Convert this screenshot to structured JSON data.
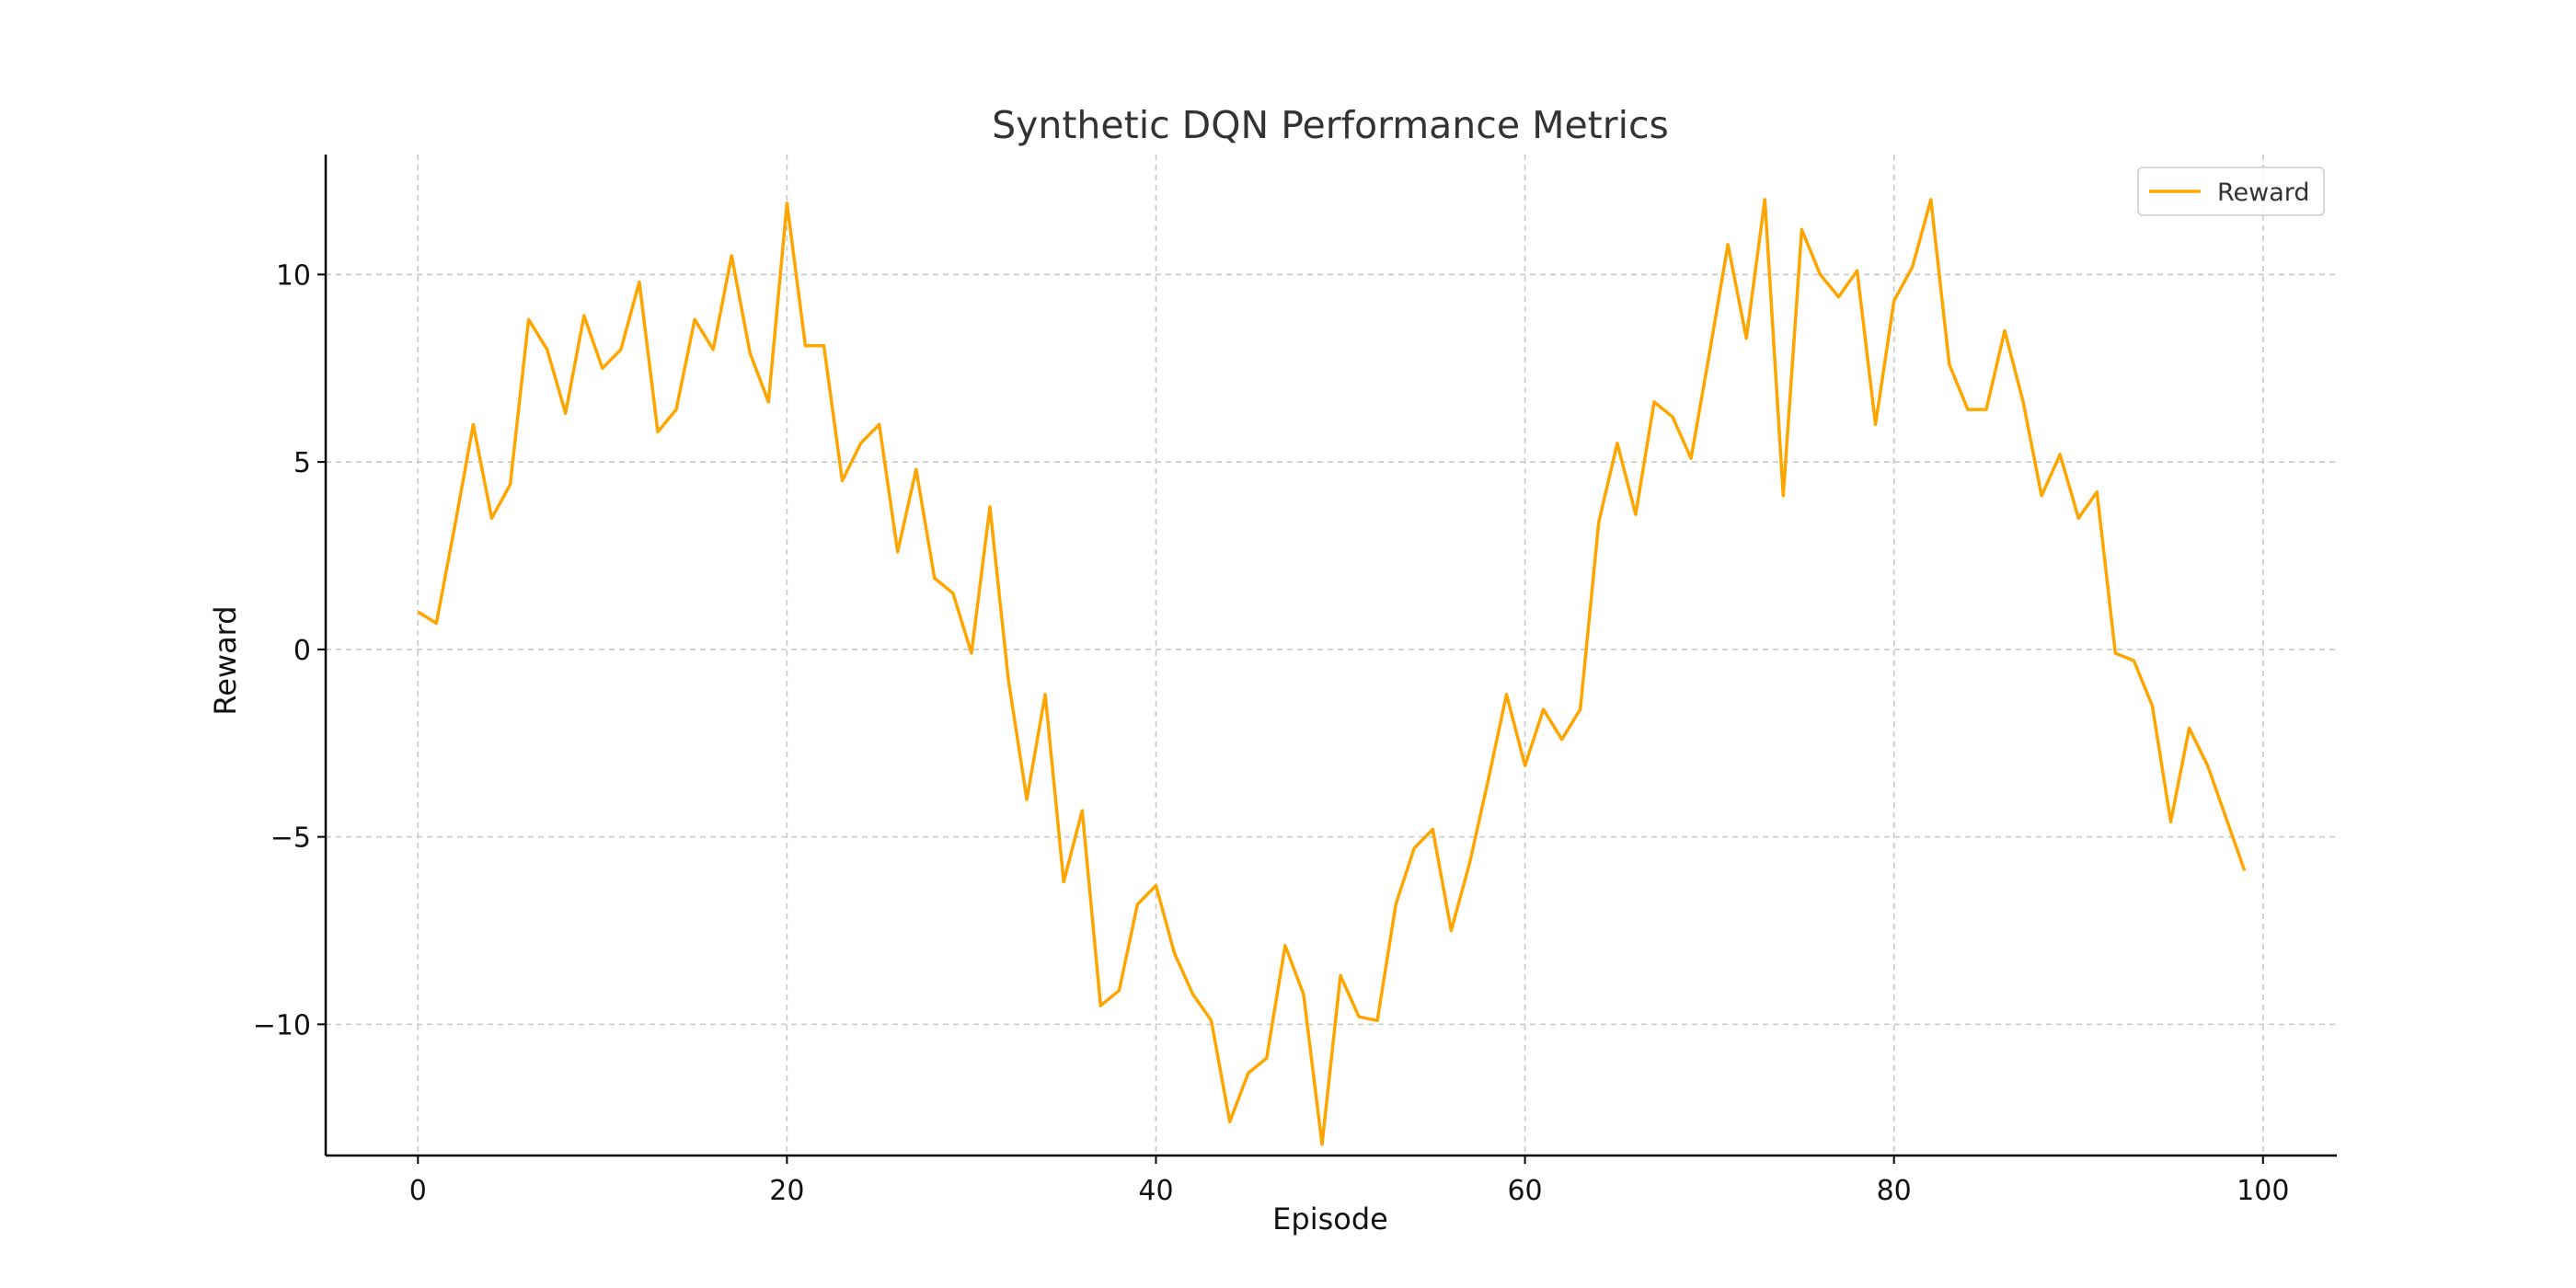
{
  "chart_data": {
    "type": "line",
    "title": "Synthetic DQN Performance Metrics",
    "xlabel": "Episode",
    "ylabel": "Reward",
    "xlim": [
      -5,
      104
    ],
    "ylim": [
      -13.5,
      13.2
    ],
    "xticks": [
      0,
      20,
      40,
      60,
      80,
      100
    ],
    "yticks": [
      -10,
      -5,
      0,
      5,
      10
    ],
    "xtick_labels": [
      "0",
      "20",
      "40",
      "60",
      "80",
      "100"
    ],
    "ytick_labels": [
      "−10",
      "−5",
      "0",
      "5",
      "10"
    ],
    "grid": true,
    "legend_position": "top-right",
    "series": [
      {
        "name": "Reward",
        "color": "#FFA500",
        "x": [
          0,
          1,
          2,
          3,
          4,
          5,
          6,
          7,
          8,
          9,
          10,
          11,
          12,
          13,
          14,
          15,
          16,
          17,
          18,
          19,
          20,
          21,
          22,
          23,
          24,
          25,
          26,
          27,
          28,
          29,
          30,
          31,
          32,
          33,
          34,
          35,
          36,
          37,
          38,
          39,
          40,
          41,
          42,
          43,
          44,
          45,
          46,
          47,
          48,
          49,
          50,
          51,
          52,
          53,
          54,
          55,
          56,
          57,
          58,
          59,
          60,
          61,
          62,
          63,
          64,
          65,
          66,
          67,
          68,
          69,
          70,
          71,
          72,
          73,
          74,
          75,
          76,
          77,
          78,
          79,
          80,
          81,
          82,
          83,
          84,
          85,
          86,
          87,
          88,
          89,
          90,
          91,
          92,
          93,
          94,
          95,
          96,
          97,
          98,
          99
        ],
        "values": [
          1.0,
          0.7,
          3.3,
          6.0,
          3.5,
          4.4,
          8.8,
          8.0,
          6.3,
          8.9,
          7.5,
          8.0,
          9.8,
          5.8,
          6.4,
          8.8,
          8.0,
          10.5,
          7.9,
          6.6,
          11.9,
          8.1,
          8.1,
          4.5,
          5.5,
          6.0,
          2.6,
          4.8,
          1.9,
          1.5,
          -0.1,
          3.8,
          -0.8,
          -4.0,
          -1.2,
          -6.2,
          -4.3,
          -9.5,
          -9.1,
          -6.8,
          -6.3,
          -8.1,
          -9.2,
          -9.9,
          -12.6,
          -11.3,
          -10.9,
          -7.9,
          -9.2,
          -13.2,
          -8.7,
          -9.8,
          -9.9,
          -6.8,
          -5.3,
          -4.8,
          -7.5,
          -5.7,
          -3.5,
          -1.2,
          -3.1,
          -1.6,
          -2.4,
          -1.6,
          3.4,
          5.5,
          3.6,
          6.6,
          6.2,
          5.1,
          7.9,
          10.8,
          8.3,
          12.0,
          4.1,
          11.2,
          10.0,
          9.4,
          10.1,
          6.0,
          9.3,
          10.2,
          12.0,
          7.6,
          6.4,
          6.4,
          8.5,
          6.6,
          4.1,
          5.2,
          3.5,
          4.2,
          -0.1,
          -0.3,
          -1.5,
          -4.6,
          -2.1,
          -3.1,
          -4.5,
          -5.9
        ]
      }
    ]
  }
}
